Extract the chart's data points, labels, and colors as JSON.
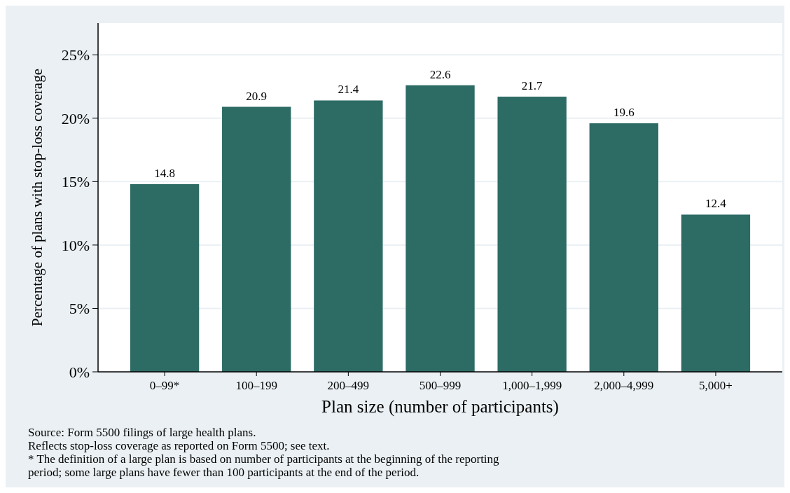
{
  "chart_data": {
    "type": "bar",
    "categories": [
      "0–99*",
      "100–199",
      "200–499",
      "500–999",
      "1,000–1,999",
      "2,000–4,999",
      "5,000+"
    ],
    "values": [
      14.8,
      20.9,
      21.4,
      22.6,
      21.7,
      19.6,
      12.4
    ],
    "color": "#2d6b65",
    "data_labels": true,
    "xlabel": "Plan size (number of participants)",
    "ylabel": "Percentage of plans with stop-loss coverage",
    "ylim": [
      0,
      27.5
    ],
    "yticks": [
      {
        "value": 0,
        "label": "0%"
      },
      {
        "value": 5,
        "label": "5%"
      },
      {
        "value": 10,
        "label": "10%"
      },
      {
        "value": 15,
        "label": "15%"
      },
      {
        "value": 20,
        "label": "20%"
      },
      {
        "value": 25,
        "label": "25%"
      }
    ],
    "grid": "y",
    "annotations": [
      "Source: Form 5500 filings of large health plans.",
      "Reflects stop-loss coverage as reported on Form 5500; see text.",
      "* The definition of a large plan is based on number of participants at the beginning of the reporting period; some large plans have fewer than 100 participants at the end of the period."
    ]
  }
}
